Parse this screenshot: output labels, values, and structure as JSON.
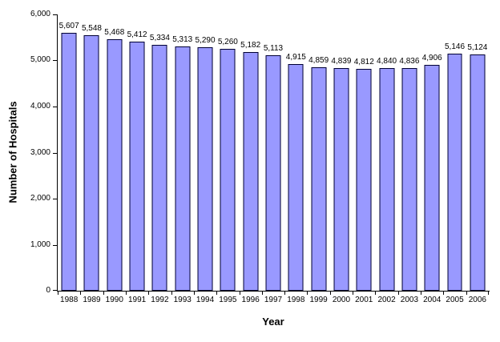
{
  "chart_data": {
    "type": "bar",
    "title": "",
    "xlabel": "Year",
    "ylabel": "Number of Hospitals",
    "categories": [
      "1988",
      "1989",
      "1990",
      "1991",
      "1992",
      "1993",
      "1994",
      "1995",
      "1996",
      "1997",
      "1998",
      "1999",
      "2000",
      "2001",
      "2002",
      "2003",
      "2004",
      "2005",
      "2006"
    ],
    "values": [
      5607,
      5548,
      5468,
      5412,
      5334,
      5313,
      5290,
      5260,
      5182,
      5113,
      4915,
      4859,
      4839,
      4812,
      4840,
      4836,
      4906,
      5146,
      5124
    ],
    "value_labels": [
      "5,607",
      "5,548",
      "5,468",
      "5,412",
      "5,334",
      "5,313",
      "5,290",
      "5,260",
      "5,182",
      "5,113",
      "4,915",
      "4,859",
      "4,839",
      "4,812",
      "4,840",
      "4,836",
      "4,906",
      "5,146",
      "5,124"
    ],
    "y_ticks": [
      "6,000",
      "5,000",
      "4,000",
      "3,000",
      "2,000",
      "1,000",
      "0"
    ],
    "ylim": [
      0,
      6000
    ],
    "grid": false,
    "legend": "none",
    "bar_fill": "#9999FF",
    "bar_border": "#000033",
    "axis_color": "#000000",
    "background": "#FFFFFF"
  }
}
